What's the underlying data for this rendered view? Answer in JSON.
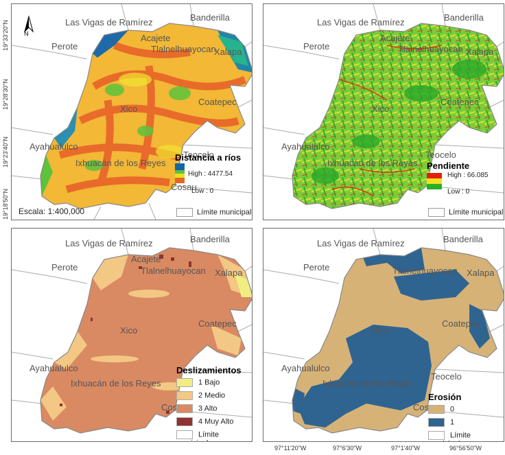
{
  "places": {
    "vigas": "Las Vigas de Ramírez",
    "banderilla": "Banderilla",
    "perote": "Perote",
    "acajete": "Acajete",
    "tlalnelhuayocan": "Tlalnelhuayocan",
    "xalapa": "Xalapa",
    "coatepec": "Coatepec",
    "xico": "Xico",
    "ayahualulco": "Ayahualulco",
    "teocelo": "Teocelo",
    "ixhuacan": "Ixhuacán de los Reyes",
    "cosau": "Cosau"
  },
  "panels": {
    "rios": {
      "legend_title": "Distancia a ríos",
      "high": "High : 4477.54",
      "low": "Low : 0",
      "scale": "Escala: 1:400,000",
      "north": "N",
      "gradient": [
        "#1565a8",
        "#20a89a",
        "#5ec23c",
        "#e8e020",
        "#f3a230",
        "#e4672a"
      ]
    },
    "pendiente": {
      "legend_title": "Pendiente",
      "high": "High : 66.085",
      "low": "Low : 0",
      "gradient": [
        "#e02010",
        "#f5e020",
        "#28b028"
      ]
    },
    "deslizamientos": {
      "legend_title": "Deslizamientos",
      "classes": [
        {
          "label": "1 Bajo",
          "color": "#f1ed82"
        },
        {
          "label": "2 Medio",
          "color": "#f3c784"
        },
        {
          "label": "3 Alto",
          "color": "#d98a63"
        },
        {
          "label": "4 Muy Alto",
          "color": "#8f3232"
        }
      ]
    },
    "erosion": {
      "legend_title": "Erosión",
      "classes": [
        {
          "label": "0",
          "color": "#d6b277"
        },
        {
          "label": "1",
          "color": "#2f6491"
        }
      ]
    }
  },
  "limite_municipal": "Límite municipal",
  "y_axis": [
    "19°33'20\"N",
    "19°28'30\"N",
    "19°23'40\"N",
    "19°18'50\"N"
  ],
  "x_axis": [
    "97°11'20\"W",
    "97°6'30\"W",
    "97°1'40\"W",
    "96°56'50\"W"
  ]
}
